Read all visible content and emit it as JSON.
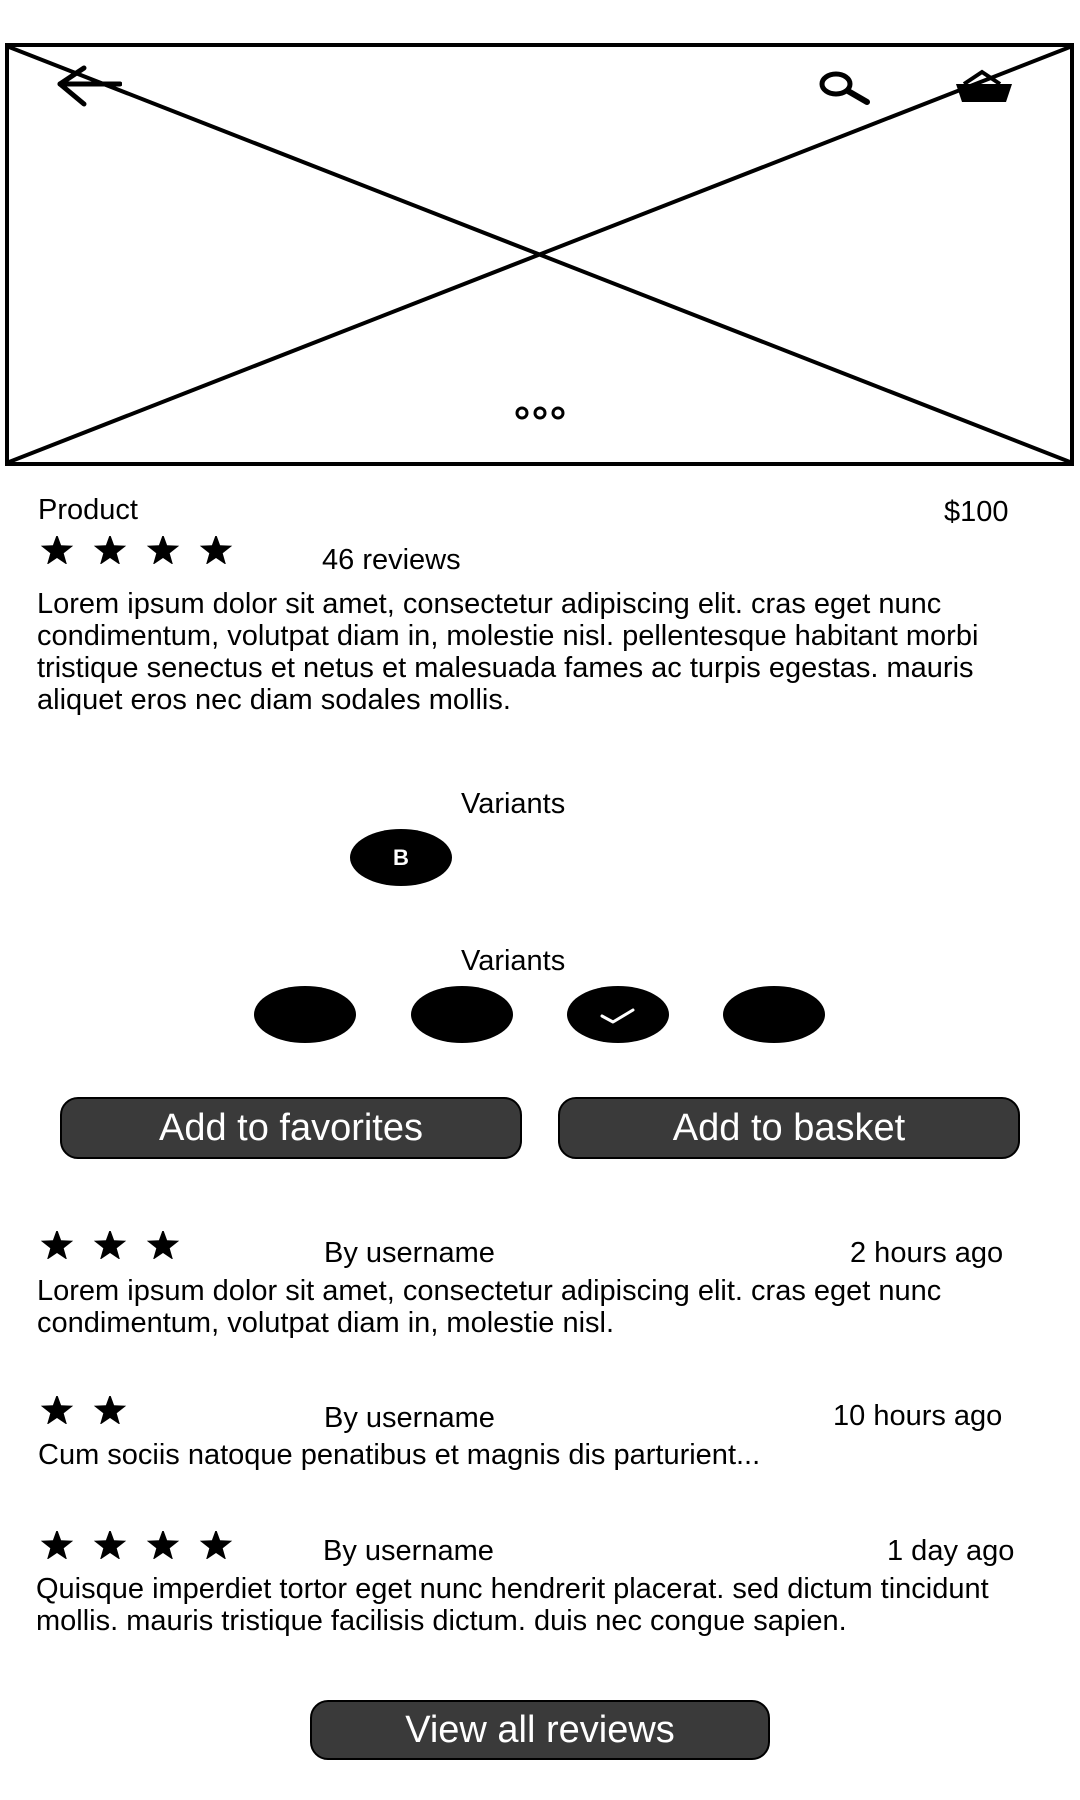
{
  "header": {
    "back_icon": "arrow-left-icon",
    "search_icon": "search-icon",
    "basket_icon": "basket-icon",
    "carousel_indicator": "dots-icon"
  },
  "product": {
    "name": "Product",
    "price": "$100",
    "rating_stars": 4,
    "reviews_count_label": "46 reviews",
    "description_lines": [
      "Lorem ipsum dolor sit amet, consectetur adipiscing elit. cras eget nunc",
      "condimentum, volutpat diam in, molestie nisl. pellentesque habitant morbi",
      "tristique senectus et netus et malesuada fames ac turpis egestas. mauris",
      "aliquet eros nec diam sodales mollis."
    ]
  },
  "variants_1": {
    "label": "Variants",
    "options": [
      "B"
    ]
  },
  "variants_2": {
    "label": "Variants",
    "count": 4,
    "selected_index": 2
  },
  "actions": {
    "favorites_label": "Add to favorites",
    "basket_label": "Add to basket"
  },
  "reviews": [
    {
      "stars": 3,
      "author": "By username",
      "time": "2 hours ago",
      "text_lines": [
        "Lorem ipsum dolor sit amet, consectetur adipiscing elit. cras eget nunc",
        "condimentum, volutpat diam in, molestie nisl."
      ]
    },
    {
      "stars": 2,
      "author": "By username",
      "time": "10 hours ago",
      "text_lines": [
        "Cum sociis natoque penatibus et magnis dis parturient..."
      ]
    },
    {
      "stars": 4,
      "author": "By username",
      "time": "1 day ago",
      "text_lines": [
        "Quisque imperdiet tortor eget nunc hendrerit placerat. sed dictum tincidunt",
        "mollis. mauris tristique facilisis dictum. duis nec congue sapien."
      ]
    }
  ],
  "footer": {
    "view_all_label": "View all reviews"
  },
  "colors": {
    "button_bg": "#3a3a3a",
    "button_text": "#ffffff",
    "ink": "#000000"
  }
}
